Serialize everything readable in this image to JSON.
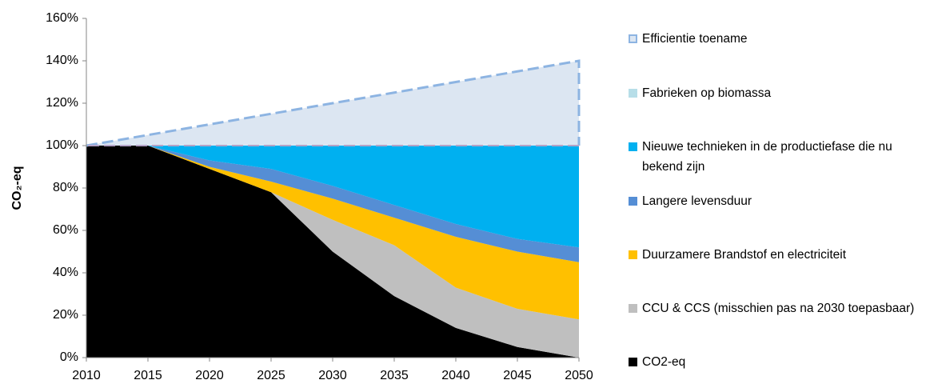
{
  "chart_data": {
    "type": "stacked-area",
    "y_label": "CO₂-eq",
    "x": [
      2010,
      2015,
      2020,
      2025,
      2030,
      2035,
      2040,
      2045,
      2050
    ],
    "xlim": [
      2010,
      2050
    ],
    "xticks": [
      2010,
      2015,
      2020,
      2025,
      2030,
      2035,
      2040,
      2045,
      2050
    ],
    "ylim": [
      0,
      160
    ],
    "yticks": [
      {
        "value": 0,
        "label": "0%"
      },
      {
        "value": 20,
        "label": "20%"
      },
      {
        "value": 40,
        "label": "40%"
      },
      {
        "value": 60,
        "label": "60%"
      },
      {
        "value": 80,
        "label": "80%"
      },
      {
        "value": 100,
        "label": "100%"
      },
      {
        "value": 120,
        "label": "120%"
      },
      {
        "value": 140,
        "label": "140%"
      },
      {
        "value": 160,
        "label": "160%"
      }
    ],
    "series": [
      {
        "name": "CO2-eq",
        "color": "#000000",
        "values": [
          100,
          100,
          89,
          78,
          50,
          29,
          14,
          5,
          0
        ]
      },
      {
        "name": "CCU & CCS (misschien pas na 2030 toepasbaar)",
        "color": "#bfbfbf",
        "values": [
          0,
          0,
          0,
          0,
          15,
          24,
          19,
          18,
          18
        ]
      },
      {
        "name": "Duurzamere Brandstof en electriciteit",
        "color": "#ffc000",
        "values": [
          0,
          0,
          1,
          5,
          10,
          13,
          24,
          27,
          27
        ]
      },
      {
        "name": "Langere levensduur",
        "color": "#558ed5",
        "values": [
          0,
          0,
          3,
          6,
          6,
          6,
          6,
          6,
          7
        ]
      },
      {
        "name": "Nieuwe technieken in de productiefase die nu bekend zijn",
        "color": "#00b0f0",
        "values": [
          0,
          0,
          7,
          11,
          19,
          28,
          37,
          44,
          48
        ]
      },
      {
        "name": "Fabrieken op biomassa",
        "color": "#b7dee8",
        "values": [
          0,
          0,
          0,
          0,
          0,
          0,
          0,
          0,
          0
        ]
      },
      {
        "name": "Efficientie toename",
        "color": "#dce6f2",
        "values": [
          0,
          5,
          10,
          15,
          20,
          25,
          30,
          35,
          40
        ]
      }
    ]
  }
}
